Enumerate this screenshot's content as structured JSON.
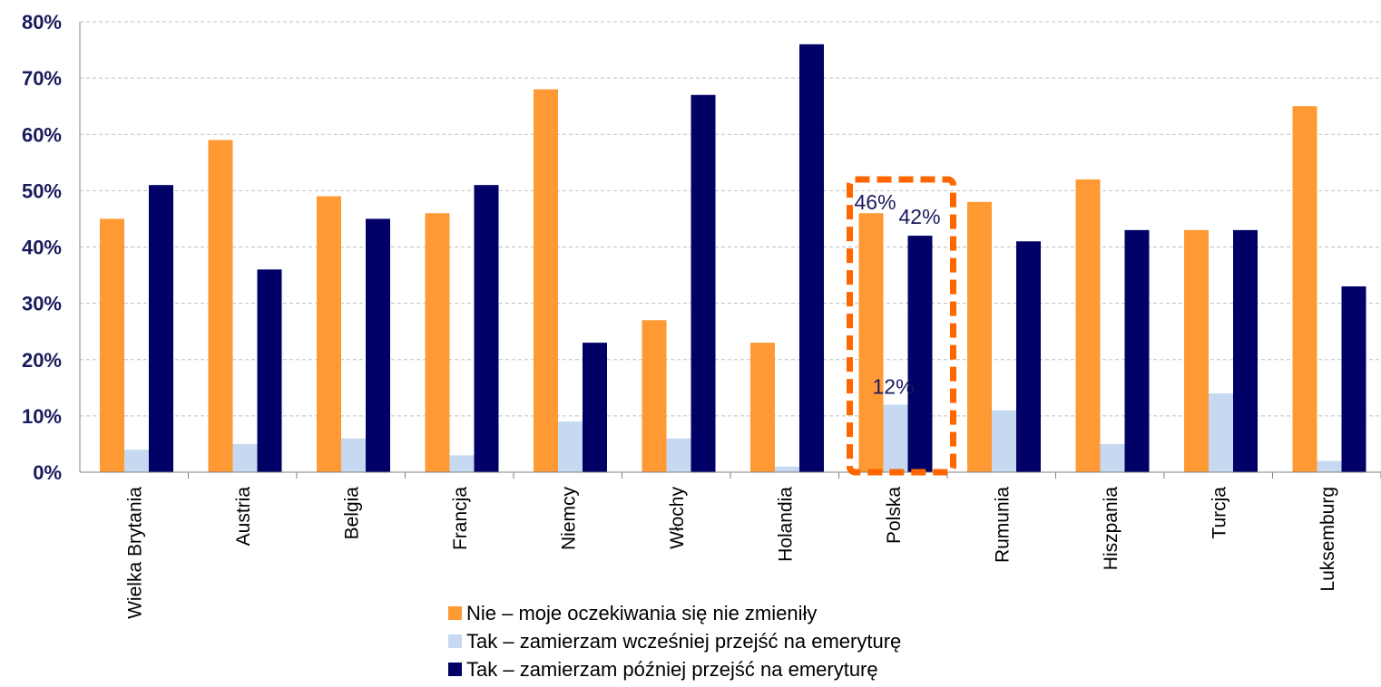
{
  "chart_data": {
    "type": "bar",
    "categories": [
      "Wielka Brytania",
      "Austria",
      "Belgia",
      "Francja",
      "Niemcy",
      "Włochy",
      "Holandia",
      "Polska",
      "Rumunia",
      "Hiszpania",
      "Turcja",
      "Luksemburg"
    ],
    "series": [
      {
        "name": "Nie – moje oczekiwania się nie zmieniły",
        "color": "#ff9933",
        "values": [
          45,
          59,
          49,
          46,
          68,
          27,
          23,
          46,
          48,
          52,
          43,
          65
        ]
      },
      {
        "name": "Tak – zamierzam wcześniej przejść na emeryturę",
        "color": "#c6d9f1",
        "values": [
          4,
          5,
          6,
          3,
          9,
          6,
          1,
          12,
          11,
          5,
          14,
          2
        ]
      },
      {
        "name": "Tak – zamierzam później przejść na emeryturę",
        "color": "#000066",
        "values": [
          51,
          36,
          45,
          51,
          23,
          67,
          76,
          42,
          41,
          43,
          43,
          33
        ]
      }
    ],
    "ylim": [
      0,
      80
    ],
    "yticks": [
      "0%",
      "10%",
      "20%",
      "30%",
      "40%",
      "50%",
      "60%",
      "70%",
      "80%"
    ],
    "grid": true,
    "legend": "bottom-center",
    "highlight": {
      "category": "Polska",
      "color": "#ff6600",
      "labels": [
        "46%",
        "12%",
        "42%"
      ]
    }
  }
}
